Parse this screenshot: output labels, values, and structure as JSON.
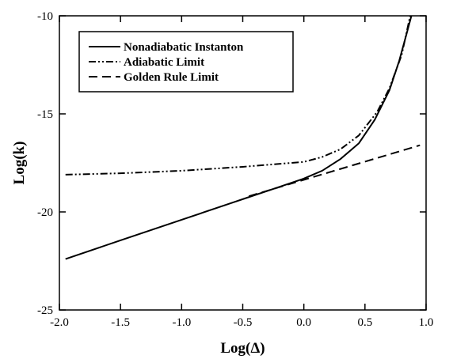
{
  "chart_data": {
    "type": "line",
    "xlabel": "Log(Δ)",
    "ylabel": "Log(k)",
    "xlim": [
      -2.0,
      1.0
    ],
    "ylim": [
      -25,
      -10
    ],
    "xticks": [
      -2.0,
      -1.5,
      -1.0,
      -0.5,
      0.0,
      0.5,
      1.0
    ],
    "xtick_labels": [
      "-2.0",
      "-1.5",
      "-1.0",
      "-0.5",
      "0.0",
      "0.5",
      "1.0"
    ],
    "yticks": [
      -25,
      -20,
      -15,
      -10
    ],
    "ytick_labels": [
      "-25",
      "-20",
      "-15",
      "-10"
    ],
    "grid": false,
    "legend_position": "top-left",
    "series": [
      {
        "name": "Nonadiabatic Instanton",
        "dash": "solid",
        "color": "#000000",
        "x": [
          -1.95,
          -1.5,
          -1.0,
          -0.5,
          -0.25,
          0.0,
          0.15,
          0.3,
          0.45,
          0.58,
          0.7,
          0.78,
          0.85,
          0.88
        ],
        "y": [
          -22.4,
          -21.45,
          -20.4,
          -19.35,
          -18.83,
          -18.3,
          -17.9,
          -17.3,
          -16.5,
          -15.3,
          -13.8,
          -12.3,
          -10.7,
          -10.0
        ]
      },
      {
        "name": "Adiabatic Limit",
        "dash": "dash-dot-dot",
        "color": "#000000",
        "x": [
          -1.95,
          -1.5,
          -1.0,
          -0.5,
          0.0,
          0.15,
          0.3,
          0.45,
          0.6,
          0.7,
          0.8,
          0.87
        ],
        "y": [
          -18.1,
          -18.03,
          -17.9,
          -17.7,
          -17.45,
          -17.2,
          -16.8,
          -16.1,
          -14.9,
          -13.7,
          -12.0,
          -10.0
        ]
      },
      {
        "name": "Golden Rule Limit",
        "dash": "dashed",
        "color": "#000000",
        "x": [
          -0.45,
          0.95
        ],
        "y": [
          -19.2,
          -16.6
        ]
      }
    ]
  }
}
